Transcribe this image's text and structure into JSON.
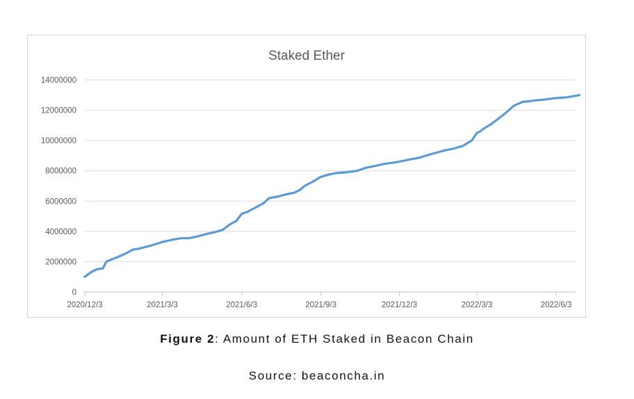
{
  "chart_data": {
    "type": "line",
    "title": "Staked Ether",
    "xlabel": "",
    "ylabel": "",
    "x_ticks": [
      "2020/12/3",
      "2021/3/3",
      "2021/6/3",
      "2021/9/3",
      "2021/12/3",
      "2022/3/3",
      "2022/6/3"
    ],
    "y_ticks": [
      "0",
      "2000000",
      "4000000",
      "6000000",
      "8000000",
      "10000000",
      "12000000",
      "14000000"
    ],
    "ylim": [
      0,
      14000000
    ],
    "xlim": [
      "2020-12-03",
      "2022-06-30"
    ],
    "grid": "horizontal",
    "legend": "none",
    "line_color": "#5b9bd5",
    "series": [
      {
        "x": [
          "2020-12-03",
          "2020-12-10",
          "2020-12-17",
          "2020-12-24",
          "2020-12-28",
          "2021-01-01",
          "2021-01-10",
          "2021-01-20",
          "2021-01-28",
          "2021-02-03",
          "2021-02-10",
          "2021-02-20",
          "2021-03-03",
          "2021-03-15",
          "2021-03-25",
          "2021-04-03",
          "2021-04-15",
          "2021-04-25",
          "2021-05-03",
          "2021-05-12",
          "2021-05-20",
          "2021-05-28",
          "2021-06-03",
          "2021-06-10",
          "2021-06-20",
          "2021-06-28",
          "2021-07-05",
          "2021-07-15",
          "2021-07-25",
          "2021-08-03",
          "2021-08-10",
          "2021-08-15",
          "2021-08-25",
          "2021-09-03",
          "2021-09-12",
          "2021-09-20",
          "2021-10-03",
          "2021-10-15",
          "2021-10-25",
          "2021-11-03",
          "2021-11-15",
          "2021-12-03",
          "2021-12-15",
          "2021-12-25",
          "2022-01-03",
          "2022-01-15",
          "2022-01-25",
          "2022-02-03",
          "2022-02-15",
          "2022-02-25",
          "2022-03-03",
          "2022-03-08",
          "2022-03-10",
          "2022-03-20",
          "2022-03-28",
          "2022-04-05",
          "2022-04-15",
          "2022-04-25",
          "2022-05-03",
          "2022-05-10",
          "2022-05-20",
          "2022-06-03",
          "2022-06-15",
          "2022-06-25",
          "2022-06-30"
        ],
        "values": [
          1000000,
          1300000,
          1500000,
          1550000,
          2000000,
          2100000,
          2300000,
          2550000,
          2800000,
          2850000,
          2950000,
          3100000,
          3300000,
          3450000,
          3550000,
          3550000,
          3700000,
          3850000,
          3950000,
          4100000,
          4450000,
          4700000,
          5150000,
          5300000,
          5600000,
          5850000,
          6200000,
          6300000,
          6450000,
          6550000,
          6750000,
          7000000,
          7300000,
          7600000,
          7750000,
          7850000,
          7900000,
          8000000,
          8200000,
          8300000,
          8450000,
          8600000,
          8750000,
          8850000,
          9000000,
          9200000,
          9350000,
          9450000,
          9650000,
          10000000,
          10500000,
          10650000,
          10750000,
          11100000,
          11450000,
          11800000,
          12300000,
          12550000,
          12600000,
          12650000,
          12700000,
          12800000,
          12850000,
          12950000,
          13000000
        ]
      }
    ]
  },
  "caption": {
    "figure_label": "Figure 2",
    "figure_text": ": Amount of ETH Staked in Beacon Chain",
    "source": "Source: beaconcha.in"
  }
}
